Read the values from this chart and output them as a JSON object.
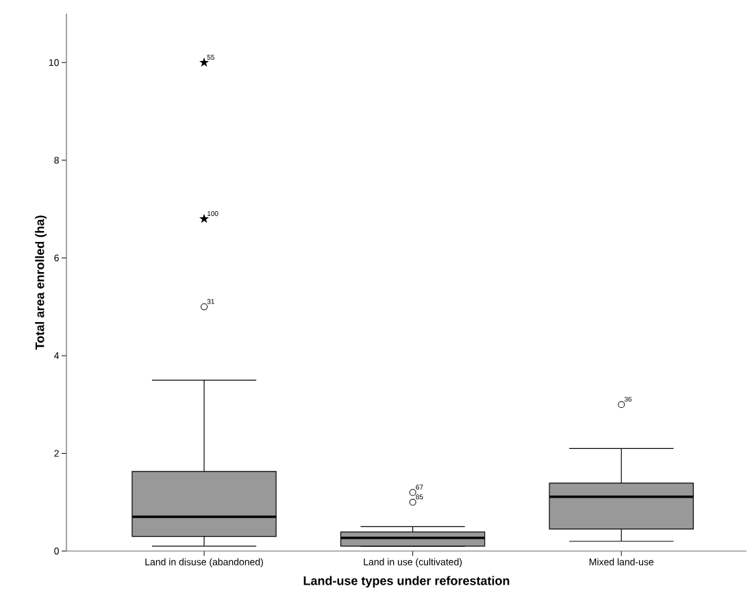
{
  "chart_data": {
    "type": "box",
    "xlabel": "Land-use types under reforestation",
    "ylabel": "Total area enrolled (ha)",
    "categories": [
      "Land in disuse (abandoned)",
      "Land in use (cultivated)",
      "Mixed land-use"
    ],
    "ylim": [
      0,
      11
    ],
    "yticks": [
      0,
      2,
      4,
      6,
      8,
      10
    ],
    "series": [
      {
        "type": "box",
        "color": "#999999",
        "boxes": [
          {
            "low": 0.1,
            "q1": 0.3,
            "median": 0.7,
            "q3": 1.63,
            "high": 3.5
          },
          {
            "low": 0.1,
            "q1": 0.1,
            "median": 0.27,
            "q3": 0.39,
            "high": 0.5
          },
          {
            "low": 0.2,
            "q1": 0.45,
            "median": 1.11,
            "q3": 1.39,
            "high": 2.1
          }
        ]
      },
      {
        "type": "scatter",
        "color": "#000000",
        "marker": "circle",
        "x": [
          "Land in disuse (abandoned)",
          "Land in use (cultivated)",
          "Land in use (cultivated)",
          "Mixed land-use"
        ],
        "values": [
          5,
          1.2,
          1.0,
          3.0
        ]
      },
      {
        "type": "scatter",
        "color": "#000000",
        "marker": "star",
        "x": [
          "Land in disuse (abandoned)",
          "Land in disuse (abandoned)"
        ],
        "values": [
          10,
          6.8
        ]
      }
    ],
    "annotations": [
      {
        "text": "55",
        "x": "Land in disuse (abandoned)",
        "y": 10
      },
      {
        "text": "100",
        "x": "Land in disuse (abandoned)",
        "y": 6.8
      },
      {
        "text": "31",
        "x": "Land in disuse (abandoned)",
        "y": 5
      },
      {
        "text": "67",
        "x": "Land in use (cultivated)",
        "y": 1.2
      },
      {
        "text": "85",
        "x": "Land in use (cultivated)",
        "y": 1.0
      },
      {
        "text": "36",
        "x": "Mixed land-use",
        "y": 3.0
      }
    ]
  }
}
